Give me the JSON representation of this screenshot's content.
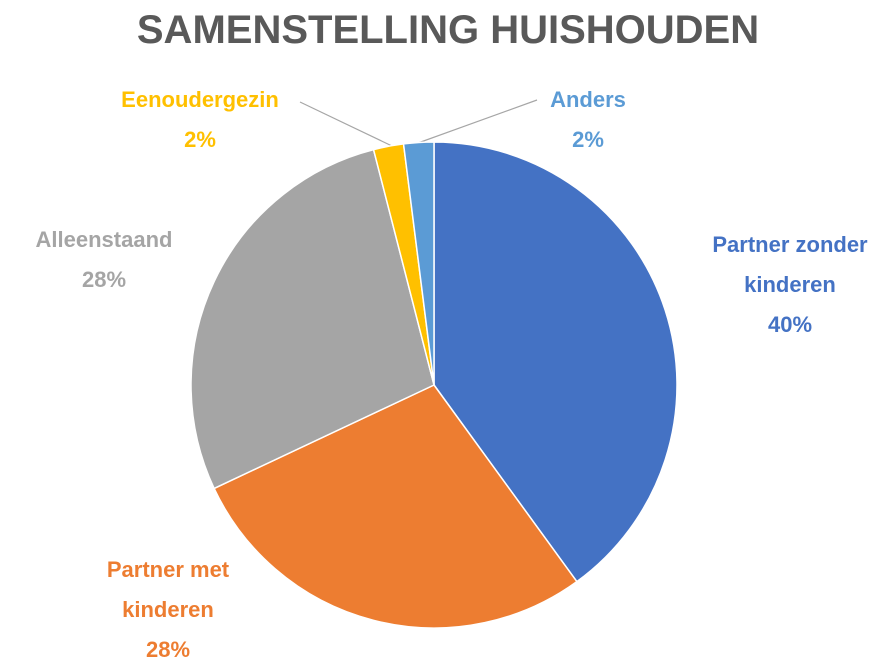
{
  "chart_data": {
    "type": "pie",
    "title": "SAMENSTELLING HUISHOUDEN",
    "categories": [
      "Partner zonder kinderen",
      "Partner met kinderen",
      "Alleenstaand",
      "Eenoudergezin",
      "Anders"
    ],
    "values": [
      40,
      28,
      28,
      2,
      2
    ],
    "value_labels": [
      "40%",
      "28%",
      "28%",
      "2%",
      "2%"
    ],
    "colors": [
      "#4472c4",
      "#ed7d31",
      "#a5a5a5",
      "#ffc000",
      "#5b9bd5"
    ]
  }
}
